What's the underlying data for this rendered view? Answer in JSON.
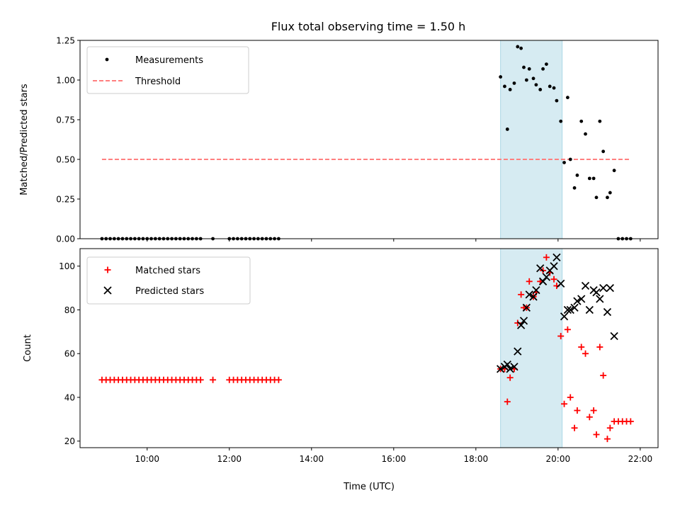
{
  "chart_data": {
    "title": "Flux total observing time = 1.50 h",
    "xlabel": "Time (UTC)",
    "xlim": [
      "08:22",
      "22:26"
    ],
    "xticks": [
      "10:00",
      "12:00",
      "14:00",
      "16:00",
      "18:00",
      "20:00",
      "22:00"
    ],
    "shaded_span": [
      "18:36",
      "20:06"
    ],
    "shade_color": "#add8e6",
    "panels": [
      {
        "type": "scatter",
        "ylabel": "Matched/Predicted stars",
        "ylim": [
          0,
          1.25
        ],
        "yticks": [
          "0.00",
          "0.25",
          "0.50",
          "0.75",
          "1.00",
          "1.25"
        ],
        "legend_position": "upper-left",
        "series": [
          {
            "name": "Measurements",
            "marker": "dot",
            "color": "#000000",
            "points": [
              [
                "08:54",
                0
              ],
              [
                "09:00",
                0
              ],
              [
                "09:06",
                0
              ],
              [
                "09:12",
                0
              ],
              [
                "09:18",
                0
              ],
              [
                "09:24",
                0
              ],
              [
                "09:30",
                0
              ],
              [
                "09:36",
                0
              ],
              [
                "09:42",
                0
              ],
              [
                "09:48",
                0
              ],
              [
                "09:54",
                0
              ],
              [
                "10:00",
                0
              ],
              [
                "10:06",
                0
              ],
              [
                "10:12",
                0
              ],
              [
                "10:18",
                0
              ],
              [
                "10:24",
                0
              ],
              [
                "10:30",
                0
              ],
              [
                "10:36",
                0
              ],
              [
                "10:42",
                0
              ],
              [
                "10:48",
                0
              ],
              [
                "10:54",
                0
              ],
              [
                "11:00",
                0
              ],
              [
                "11:06",
                0
              ],
              [
                "11:12",
                0
              ],
              [
                "11:18",
                0
              ],
              [
                "11:36",
                0
              ],
              [
                "12:00",
                0
              ],
              [
                "12:06",
                0
              ],
              [
                "12:12",
                0
              ],
              [
                "12:18",
                0
              ],
              [
                "12:24",
                0
              ],
              [
                "12:30",
                0
              ],
              [
                "12:36",
                0
              ],
              [
                "12:42",
                0
              ],
              [
                "12:48",
                0
              ],
              [
                "12:54",
                0
              ],
              [
                "13:00",
                0
              ],
              [
                "13:06",
                0
              ],
              [
                "13:12",
                0
              ],
              [
                "18:36",
                1.02
              ],
              [
                "18:42",
                0.96
              ],
              [
                "18:46",
                0.69
              ],
              [
                "18:50",
                0.94
              ],
              [
                "18:56",
                0.98
              ],
              [
                "19:01",
                1.21
              ],
              [
                "19:06",
                1.2
              ],
              [
                "19:10",
                1.08
              ],
              [
                "19:14",
                1.0
              ],
              [
                "19:18",
                1.07
              ],
              [
                "19:24",
                1.01
              ],
              [
                "19:28",
                0.97
              ],
              [
                "19:34",
                0.94
              ],
              [
                "19:38",
                1.07
              ],
              [
                "19:43",
                1.1
              ],
              [
                "19:48",
                0.96
              ],
              [
                "19:54",
                0.95
              ],
              [
                "19:58",
                0.87
              ],
              [
                "20:04",
                0.74
              ],
              [
                "20:09",
                0.48
              ],
              [
                "20:14",
                0.89
              ],
              [
                "20:18",
                0.5
              ],
              [
                "20:24",
                0.32
              ],
              [
                "20:28",
                0.4
              ],
              [
                "20:34",
                0.74
              ],
              [
                "20:40",
                0.66
              ],
              [
                "20:46",
                0.38
              ],
              [
                "20:52",
                0.38
              ],
              [
                "20:56",
                0.26
              ],
              [
                "21:01",
                0.74
              ],
              [
                "21:06",
                0.55
              ],
              [
                "21:12",
                0.26
              ],
              [
                "21:16",
                0.29
              ],
              [
                "21:22",
                0.43
              ],
              [
                "21:28",
                0
              ],
              [
                "21:34",
                0
              ],
              [
                "21:40",
                0
              ],
              [
                "21:46",
                0
              ]
            ]
          },
          {
            "name": "Threshold",
            "type": "line",
            "style": "dashed",
            "color": "#ff7f7f",
            "points": [
              [
                "08:54",
                0.5
              ],
              [
                "21:46",
                0.5
              ]
            ]
          }
        ]
      },
      {
        "type": "scatter",
        "ylabel": "Count",
        "ylim": [
          17,
          108
        ],
        "yticks": [
          "20",
          "40",
          "60",
          "80",
          "100"
        ],
        "legend_position": "upper-left",
        "series": [
          {
            "name": "Matched stars",
            "marker": "plus",
            "color": "#ff0000",
            "points": [
              [
                "08:54",
                48
              ],
              [
                "09:00",
                48
              ],
              [
                "09:06",
                48
              ],
              [
                "09:12",
                48
              ],
              [
                "09:18",
                48
              ],
              [
                "09:24",
                48
              ],
              [
                "09:30",
                48
              ],
              [
                "09:36",
                48
              ],
              [
                "09:42",
                48
              ],
              [
                "09:48",
                48
              ],
              [
                "09:54",
                48
              ],
              [
                "10:00",
                48
              ],
              [
                "10:06",
                48
              ],
              [
                "10:12",
                48
              ],
              [
                "10:18",
                48
              ],
              [
                "10:24",
                48
              ],
              [
                "10:30",
                48
              ],
              [
                "10:36",
                48
              ],
              [
                "10:42",
                48
              ],
              [
                "10:48",
                48
              ],
              [
                "10:54",
                48
              ],
              [
                "11:00",
                48
              ],
              [
                "11:06",
                48
              ],
              [
                "11:12",
                48
              ],
              [
                "11:18",
                48
              ],
              [
                "11:36",
                48
              ],
              [
                "12:00",
                48
              ],
              [
                "12:06",
                48
              ],
              [
                "12:12",
                48
              ],
              [
                "12:18",
                48
              ],
              [
                "12:24",
                48
              ],
              [
                "12:30",
                48
              ],
              [
                "12:36",
                48
              ],
              [
                "12:42",
                48
              ],
              [
                "12:48",
                48
              ],
              [
                "12:54",
                48
              ],
              [
                "13:00",
                48
              ],
              [
                "13:06",
                48
              ],
              [
                "13:12",
                48
              ],
              [
                "18:36",
                53
              ],
              [
                "18:42",
                53
              ],
              [
                "18:46",
                38
              ],
              [
                "18:50",
                49
              ],
              [
                "18:56",
                53
              ],
              [
                "19:01",
                74
              ],
              [
                "19:06",
                87
              ],
              [
                "19:10",
                81
              ],
              [
                "19:14",
                81
              ],
              [
                "19:18",
                93
              ],
              [
                "19:24",
                86
              ],
              [
                "19:28",
                88
              ],
              [
                "19:34",
                93
              ],
              [
                "19:38",
                98
              ],
              [
                "19:43",
                104
              ],
              [
                "19:48",
                97
              ],
              [
                "19:54",
                94
              ],
              [
                "19:58",
                91
              ],
              [
                "20:04",
                68
              ],
              [
                "20:09",
                37
              ],
              [
                "20:14",
                71
              ],
              [
                "20:18",
                40
              ],
              [
                "20:24",
                26
              ],
              [
                "20:28",
                34
              ],
              [
                "20:34",
                63
              ],
              [
                "20:40",
                60
              ],
              [
                "20:46",
                31
              ],
              [
                "20:52",
                34
              ],
              [
                "20:56",
                23
              ],
              [
                "21:01",
                63
              ],
              [
                "21:06",
                50
              ],
              [
                "21:12",
                21
              ],
              [
                "21:16",
                26
              ],
              [
                "21:22",
                29
              ],
              [
                "21:28",
                29
              ],
              [
                "21:34",
                29
              ],
              [
                "21:40",
                29
              ],
              [
                "21:46",
                29
              ]
            ]
          },
          {
            "name": "Predicted stars",
            "marker": "x",
            "color": "#000000",
            "points": [
              [
                "18:36",
                53
              ],
              [
                "18:42",
                54
              ],
              [
                "18:46",
                55
              ],
              [
                "18:50",
                53
              ],
              [
                "18:56",
                54
              ],
              [
                "19:01",
                61
              ],
              [
                "19:06",
                73
              ],
              [
                "19:10",
                75
              ],
              [
                "19:14",
                81
              ],
              [
                "19:18",
                87
              ],
              [
                "19:24",
                86
              ],
              [
                "19:28",
                89
              ],
              [
                "19:34",
                99
              ],
              [
                "19:38",
                93
              ],
              [
                "19:43",
                95
              ],
              [
                "19:48",
                98
              ],
              [
                "19:54",
                100
              ],
              [
                "19:58",
                104
              ],
              [
                "20:04",
                92
              ],
              [
                "20:09",
                77
              ],
              [
                "20:14",
                80
              ],
              [
                "20:18",
                80
              ],
              [
                "20:24",
                81
              ],
              [
                "20:28",
                84
              ],
              [
                "20:34",
                85
              ],
              [
                "20:40",
                91
              ],
              [
                "20:46",
                80
              ],
              [
                "20:52",
                89
              ],
              [
                "20:56",
                88
              ],
              [
                "21:01",
                85
              ],
              [
                "21:06",
                90
              ],
              [
                "21:12",
                79
              ],
              [
                "21:16",
                90
              ],
              [
                "21:22",
                68
              ]
            ]
          }
        ]
      }
    ]
  }
}
